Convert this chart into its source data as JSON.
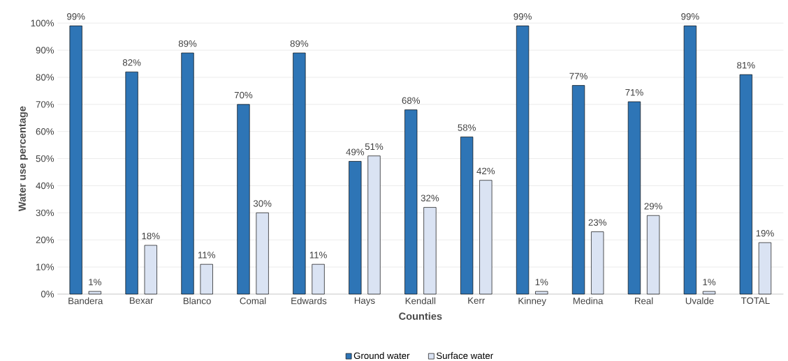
{
  "chart_data": {
    "type": "bar",
    "xlabel": "Counties",
    "ylabel": "Water use percentage",
    "categories": [
      "Bandera",
      "Bexar",
      "Blanco",
      "Comal",
      "Edwards",
      "Hays",
      "Kendall",
      "Kerr",
      "Kinney",
      "Medina",
      "Real",
      "Uvalde",
      "TOTAL"
    ],
    "series": [
      {
        "name": "Ground water",
        "color": "#2e75b6",
        "values": [
          99,
          82,
          89,
          70,
          89,
          49,
          68,
          58,
          99,
          77,
          71,
          99,
          81
        ],
        "value_labels": [
          "99%",
          "82%",
          "89%",
          "70%",
          "89%",
          "49%",
          "68%",
          "58%",
          "99%",
          "77%",
          "71%",
          "99%",
          "81%"
        ]
      },
      {
        "name": "Surface water",
        "color": "#dae3f3",
        "values": [
          1,
          18,
          11,
          30,
          11,
          51,
          32,
          42,
          1,
          23,
          29,
          1,
          19
        ],
        "value_labels": [
          "1%",
          "18%",
          "11%",
          "30%",
          "11%",
          "51%",
          "32%",
          "42%",
          "1%",
          "23%",
          "29%",
          "1%",
          "19%"
        ]
      }
    ],
    "ylim": [
      0,
      100
    ],
    "yticks": [
      {
        "value": 0,
        "label": "0%"
      },
      {
        "value": 10,
        "label": "10%"
      },
      {
        "value": 20,
        "label": "20%"
      },
      {
        "value": 30,
        "label": "30%"
      },
      {
        "value": 40,
        "label": "40%"
      },
      {
        "value": 50,
        "label": "50%"
      },
      {
        "value": 60,
        "label": "60%"
      },
      {
        "value": 70,
        "label": "70%"
      },
      {
        "value": 80,
        "label": "80%"
      },
      {
        "value": 90,
        "label": "90%"
      },
      {
        "value": 100,
        "label": "100%"
      }
    ],
    "grid": "y",
    "legend": "bottom"
  }
}
